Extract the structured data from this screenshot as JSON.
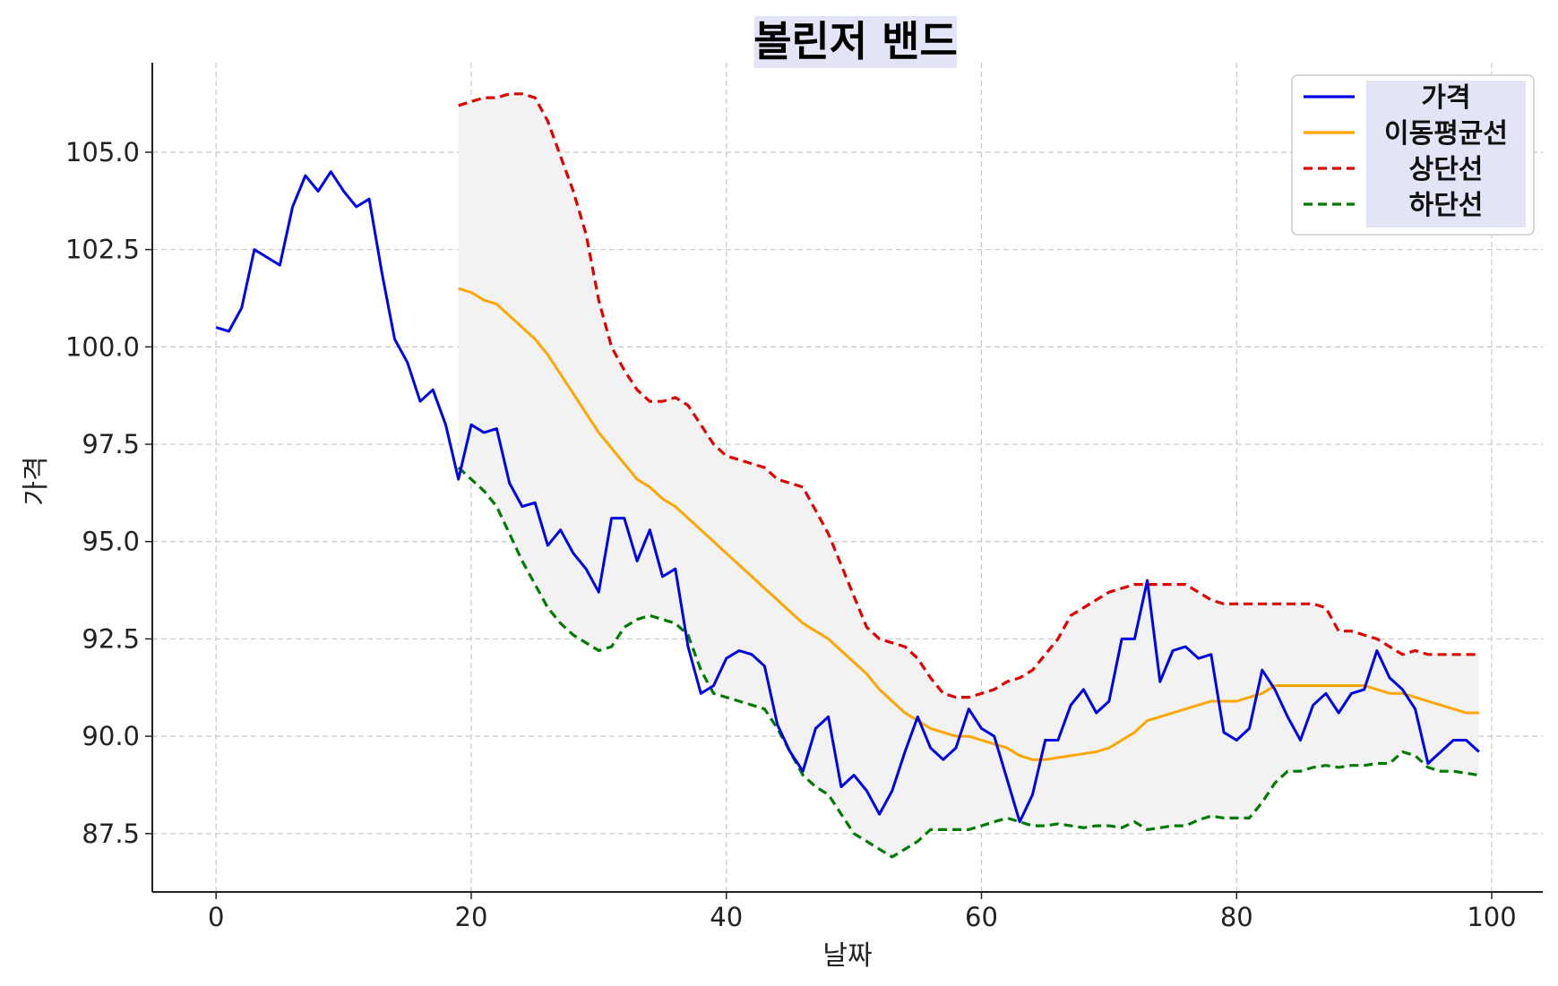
{
  "chart_data": {
    "type": "line",
    "title": "볼린저 밴드",
    "xlabel": "날짜",
    "ylabel": "가격",
    "xlim": [
      -5,
      104
    ],
    "ylim": [
      86.0,
      107.3
    ],
    "xticks": [
      0,
      20,
      40,
      60,
      80,
      100
    ],
    "yticks": [
      87.5,
      90.0,
      92.5,
      95.0,
      97.5,
      100.0,
      102.5,
      105.0
    ],
    "grid": true,
    "legend_position": "top-right",
    "colors": {
      "price": "#0000e6",
      "ma": "#ffa500",
      "upper": "#e00000",
      "lower": "#007a00",
      "band_fill": "#f2f2f2"
    },
    "band_x_range": [
      19,
      99
    ],
    "series": [
      {
        "name": "가격",
        "key": "price",
        "x_start": 0,
        "values": [
          100.5,
          100.4,
          101.0,
          102.5,
          102.3,
          102.1,
          103.6,
          104.4,
          104.0,
          104.5,
          104.0,
          103.6,
          103.8,
          101.9,
          100.2,
          99.6,
          98.6,
          98.9,
          98.0,
          96.6,
          98.0,
          97.8,
          97.9,
          96.5,
          95.9,
          96.0,
          94.9,
          95.3,
          94.7,
          94.3,
          93.7,
          95.6,
          95.6,
          94.5,
          95.3,
          94.1,
          94.3,
          92.3,
          91.1,
          91.3,
          92.0,
          92.2,
          92.1,
          91.8,
          90.3,
          89.6,
          89.1,
          90.2,
          90.5,
          88.7,
          89.0,
          88.6,
          88.0,
          88.6,
          89.6,
          90.5,
          89.7,
          89.4,
          89.7,
          90.7,
          90.2,
          90.0,
          88.9,
          87.8,
          88.5,
          89.9,
          89.9,
          90.8,
          91.2,
          90.6,
          90.9,
          92.5,
          92.5,
          94.0,
          91.4,
          92.2,
          92.3,
          92.0,
          92.1,
          90.1,
          89.9,
          90.2,
          91.7,
          91.2,
          90.5,
          89.9,
          90.8,
          91.1,
          90.6,
          91.1,
          91.2,
          92.2,
          91.5,
          91.2,
          90.7,
          89.3,
          89.6,
          89.9,
          89.9,
          89.6
        ]
      },
      {
        "name": "이동평균선",
        "key": "ma",
        "x_start": 19,
        "values": [
          101.5,
          101.4,
          101.2,
          101.1,
          100.8,
          100.5,
          100.2,
          99.8,
          99.3,
          98.8,
          98.3,
          97.8,
          97.4,
          97.0,
          96.6,
          96.4,
          96.1,
          95.9,
          95.6,
          95.3,
          95.0,
          94.7,
          94.4,
          94.1,
          93.8,
          93.5,
          93.2,
          92.9,
          92.7,
          92.5,
          92.2,
          91.9,
          91.6,
          91.2,
          90.9,
          90.6,
          90.4,
          90.2,
          90.1,
          90.0,
          90.0,
          89.9,
          89.8,
          89.7,
          89.5,
          89.4,
          89.4,
          89.45,
          89.5,
          89.55,
          89.6,
          89.7,
          89.9,
          90.1,
          90.4,
          90.5,
          90.6,
          90.7,
          90.8,
          90.9,
          90.9,
          90.9,
          91.0,
          91.1,
          91.3,
          91.3,
          91.3,
          91.3,
          91.3,
          91.3,
          91.3,
          91.3,
          91.2,
          91.1,
          91.1,
          91.0,
          90.9,
          90.8,
          90.7,
          90.6,
          90.6
        ]
      },
      {
        "name": "상단선",
        "key": "upper",
        "x_start": 19,
        "values": [
          106.2,
          106.3,
          106.4,
          106.4,
          106.5,
          106.5,
          106.4,
          105.8,
          104.9,
          104.0,
          102.9,
          101.2,
          100.0,
          99.4,
          98.9,
          98.6,
          98.6,
          98.7,
          98.5,
          98.0,
          97.5,
          97.2,
          97.1,
          97.0,
          96.9,
          96.6,
          96.5,
          96.4,
          95.8,
          95.2,
          94.4,
          93.6,
          92.8,
          92.5,
          92.4,
          92.3,
          92.0,
          91.5,
          91.1,
          91.0,
          91.0,
          91.1,
          91.2,
          91.4,
          91.5,
          91.7,
          92.1,
          92.5,
          93.1,
          93.3,
          93.5,
          93.7,
          93.8,
          93.9,
          93.9,
          93.9,
          93.9,
          93.9,
          93.7,
          93.5,
          93.4,
          93.4,
          93.4,
          93.4,
          93.4,
          93.4,
          93.4,
          93.4,
          93.3,
          92.7,
          92.7,
          92.6,
          92.5,
          92.3,
          92.1,
          92.2,
          92.1,
          92.1,
          92.1,
          92.1,
          92.1
        ]
      },
      {
        "name": "하단선",
        "key": "lower",
        "x_start": 19,
        "values": [
          96.9,
          96.6,
          96.3,
          95.9,
          95.2,
          94.5,
          93.9,
          93.3,
          92.9,
          92.6,
          92.4,
          92.2,
          92.3,
          92.8,
          93.0,
          93.1,
          93.0,
          92.9,
          92.6,
          91.7,
          91.1,
          91.0,
          90.9,
          90.8,
          90.7,
          90.2,
          89.6,
          89.0,
          88.7,
          88.5,
          88.0,
          87.5,
          87.3,
          87.1,
          86.9,
          87.1,
          87.3,
          87.6,
          87.6,
          87.6,
          87.6,
          87.7,
          87.8,
          87.9,
          87.8,
          87.7,
          87.7,
          87.75,
          87.7,
          87.65,
          87.7,
          87.7,
          87.65,
          87.8,
          87.6,
          87.65,
          87.7,
          87.7,
          87.85,
          87.95,
          87.9,
          87.9,
          87.9,
          88.3,
          88.8,
          89.1,
          89.1,
          89.2,
          89.25,
          89.2,
          89.25,
          89.25,
          89.3,
          89.3,
          89.6,
          89.5,
          89.2,
          89.1,
          89.1,
          89.05,
          89.0
        ]
      }
    ]
  }
}
